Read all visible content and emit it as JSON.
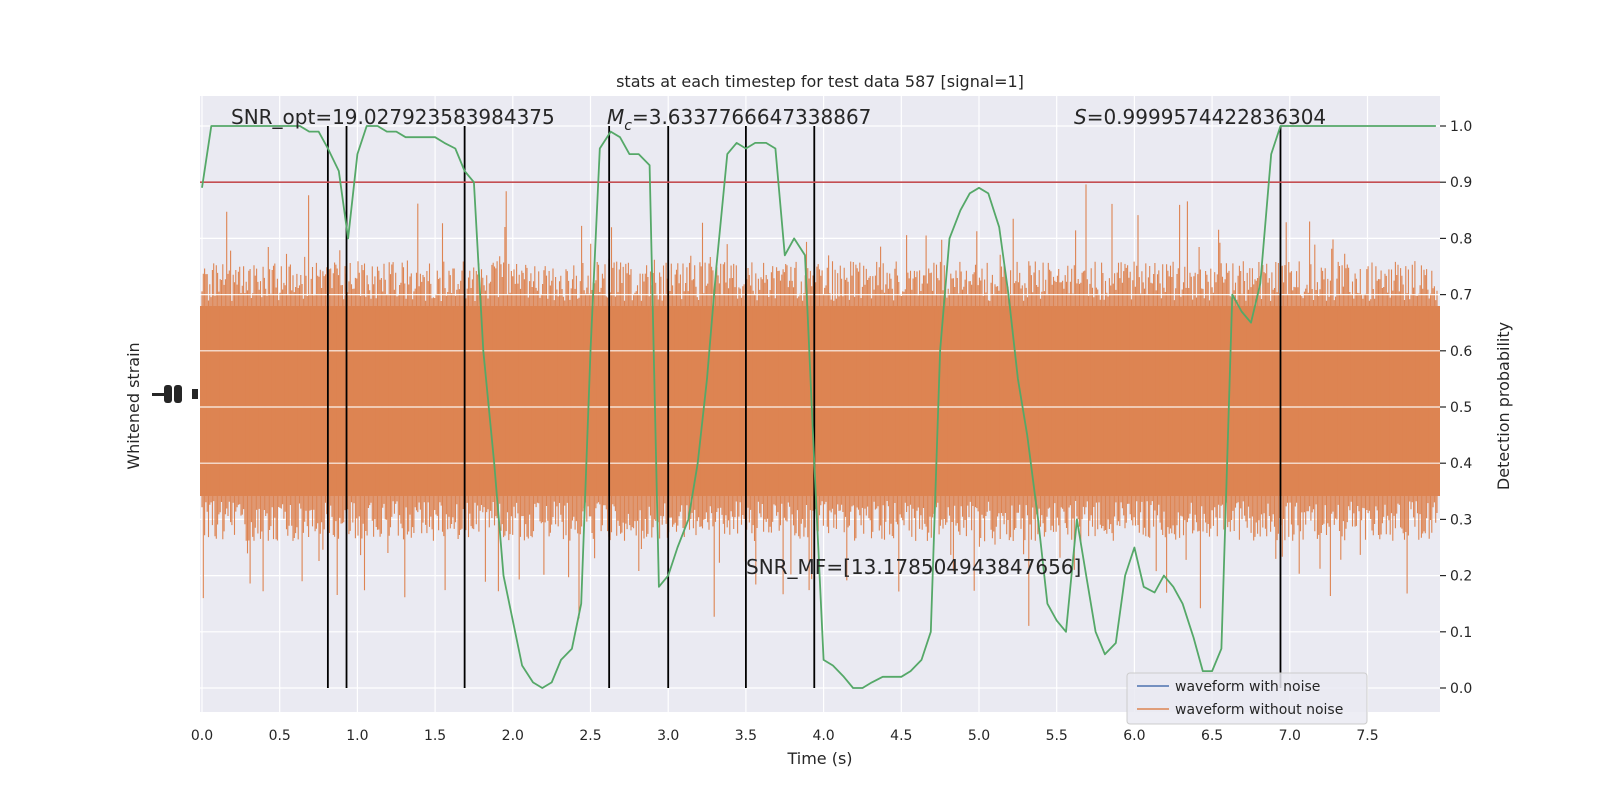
{
  "chart_data": {
    "type": "line",
    "title": "stats at each timestep for test data 587 [signal=1]",
    "xlabel": "Time (s)",
    "ylabel_left": "Whitened strain",
    "ylabel_right": "Detection probability",
    "xlim": [
      0,
      8
    ],
    "ylim_right": [
      -0.05,
      1.05
    ],
    "xticks": [
      "0.0",
      "0.5",
      "1.0",
      "1.5",
      "2.0",
      "2.5",
      "3.0",
      "3.5",
      "4.0",
      "4.5",
      "5.0",
      "5.5",
      "6.0",
      "6.5",
      "7.0",
      "7.5"
    ],
    "yticks_right": [
      "0.0",
      "0.1",
      "0.2",
      "0.3",
      "0.4",
      "0.5",
      "0.6",
      "0.7",
      "0.8",
      "0.9",
      "1.0"
    ],
    "grid": true,
    "legend_position": "lower right",
    "legend": [
      {
        "label": "waveform with noise",
        "color": "#4c72b0"
      },
      {
        "label": "waveform without noise",
        "color": "#dd8452"
      }
    ],
    "annotations": {
      "snr_opt": "SNR_opt=19.027923583984375",
      "mc_sym": "M",
      "mc_sub": "c",
      "mc_val": "=3.6337766647338867",
      "s_sym": "S",
      "s_val": "=0.9999574422836304",
      "snr_mf": "SNR_MF=[13.178504943847656]"
    },
    "threshold": 0.9,
    "threshold_color": "#c44e52",
    "vlines": [
      0.81,
      0.93,
      1.69,
      2.62,
      3.0,
      3.5,
      3.94,
      6.94
    ],
    "strain_color": "#dd8452",
    "probability_color": "#55a868",
    "probability": {
      "x": [
        0.0,
        0.06,
        0.13,
        0.19,
        0.25,
        0.31,
        0.38,
        0.44,
        0.5,
        0.56,
        0.63,
        0.69,
        0.75,
        0.81,
        0.88,
        0.94,
        1.0,
        1.06,
        1.13,
        1.19,
        1.25,
        1.31,
        1.38,
        1.44,
        1.5,
        1.56,
        1.63,
        1.69,
        1.75,
        1.81,
        1.88,
        1.94,
        2.0,
        2.06,
        2.13,
        2.19,
        2.25,
        2.31,
        2.38,
        2.44,
        2.5,
        2.56,
        2.63,
        2.69,
        2.75,
        2.81,
        2.88,
        2.94,
        3.0,
        3.06,
        3.13,
        3.19,
        3.25,
        3.31,
        3.38,
        3.44,
        3.5,
        3.56,
        3.63,
        3.69,
        3.75,
        3.81,
        3.88,
        3.94,
        4.0,
        4.06,
        4.13,
        4.19,
        4.25,
        4.31,
        4.38,
        4.44,
        4.5,
        4.56,
        4.63,
        4.69,
        4.75,
        4.81,
        4.88,
        4.94,
        5.0,
        5.06,
        5.13,
        5.19,
        5.25,
        5.31,
        5.38,
        5.44,
        5.5,
        5.56,
        5.63,
        5.69,
        5.75,
        5.81,
        5.88,
        5.94,
        6.0,
        6.06,
        6.13,
        6.19,
        6.25,
        6.31,
        6.38,
        6.44,
        6.5,
        6.56,
        6.63,
        6.69,
        6.75,
        6.81,
        6.88,
        6.94,
        7.0,
        7.06,
        7.13,
        7.19,
        7.25,
        7.31,
        7.38,
        7.44,
        7.5,
        7.56,
        7.63,
        7.69,
        7.75,
        7.81,
        7.88,
        7.94
      ],
      "y": [
        0.89,
        1.0,
        1.0,
        1.0,
        1.0,
        1.0,
        1.0,
        1.0,
        1.0,
        1.0,
        1.0,
        0.99,
        0.99,
        0.96,
        0.92,
        0.8,
        0.95,
        1.0,
        1.0,
        0.99,
        0.99,
        0.98,
        0.98,
        0.98,
        0.98,
        0.97,
        0.96,
        0.92,
        0.9,
        0.6,
        0.4,
        0.2,
        0.12,
        0.04,
        0.01,
        0.0,
        0.01,
        0.05,
        0.07,
        0.15,
        0.6,
        0.96,
        0.99,
        0.98,
        0.95,
        0.95,
        0.93,
        0.18,
        0.2,
        0.25,
        0.3,
        0.4,
        0.55,
        0.75,
        0.95,
        0.97,
        0.96,
        0.97,
        0.97,
        0.96,
        0.77,
        0.8,
        0.77,
        0.4,
        0.05,
        0.04,
        0.02,
        0.0,
        0.0,
        0.01,
        0.02,
        0.02,
        0.02,
        0.03,
        0.05,
        0.1,
        0.6,
        0.8,
        0.85,
        0.88,
        0.89,
        0.88,
        0.82,
        0.7,
        0.55,
        0.45,
        0.3,
        0.15,
        0.12,
        0.1,
        0.3,
        0.2,
        0.1,
        0.06,
        0.08,
        0.2,
        0.25,
        0.18,
        0.17,
        0.2,
        0.18,
        0.15,
        0.09,
        0.03,
        0.03,
        0.07,
        0.7,
        0.67,
        0.65,
        0.72,
        0.95,
        1.0,
        1.0,
        1.0,
        1.0,
        1.0,
        1.0,
        1.0,
        1.0,
        1.0,
        1.0,
        1.0,
        1.0,
        1.0,
        1.0,
        1.0,
        1.0,
        1.0
      ]
    }
  }
}
